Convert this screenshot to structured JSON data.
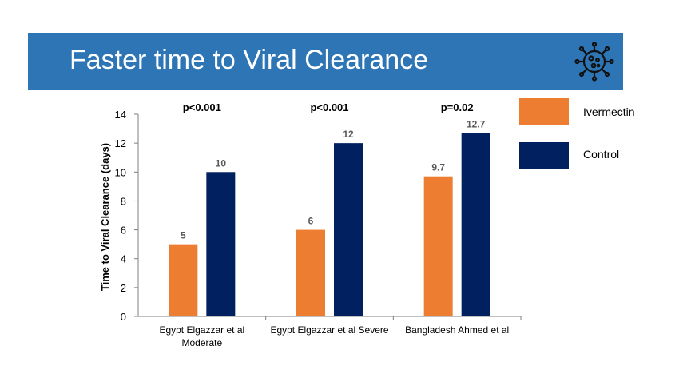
{
  "header": {
    "title": "Faster time to Viral Clearance",
    "icon": "virus-icon",
    "background": "#2e75b6"
  },
  "chart_data": {
    "type": "bar",
    "categories": [
      "Egypt Elgazzar et al Moderate",
      "Egypt Elgazzar et al Severe",
      "Bangladesh Ahmed et al"
    ],
    "category_lines": [
      [
        "Egypt Elgazzar et al",
        "Moderate"
      ],
      [
        "Egypt Elgazzar et al Severe"
      ],
      [
        "Bangladesh Ahmed et al"
      ]
    ],
    "series": [
      {
        "name": "Ivermectin",
        "values": [
          5,
          6,
          9.7
        ],
        "labels": [
          "5",
          "6",
          "9.7"
        ],
        "color": "#ed7d31"
      },
      {
        "name": "Control",
        "values": [
          10,
          12,
          12.7
        ],
        "labels": [
          "10",
          "12",
          "12.7"
        ],
        "color": "#002060"
      }
    ],
    "annotations": [
      "p<0.001",
      "p<0.001",
      "p=0.02"
    ],
    "ylabel": "Time to Viral Clearance (days)",
    "xlabel": "",
    "ylim": [
      0,
      14
    ],
    "yticks": [
      0,
      2,
      4,
      6,
      8,
      10,
      12,
      14
    ],
    "grid": false,
    "legend_position": "right"
  }
}
